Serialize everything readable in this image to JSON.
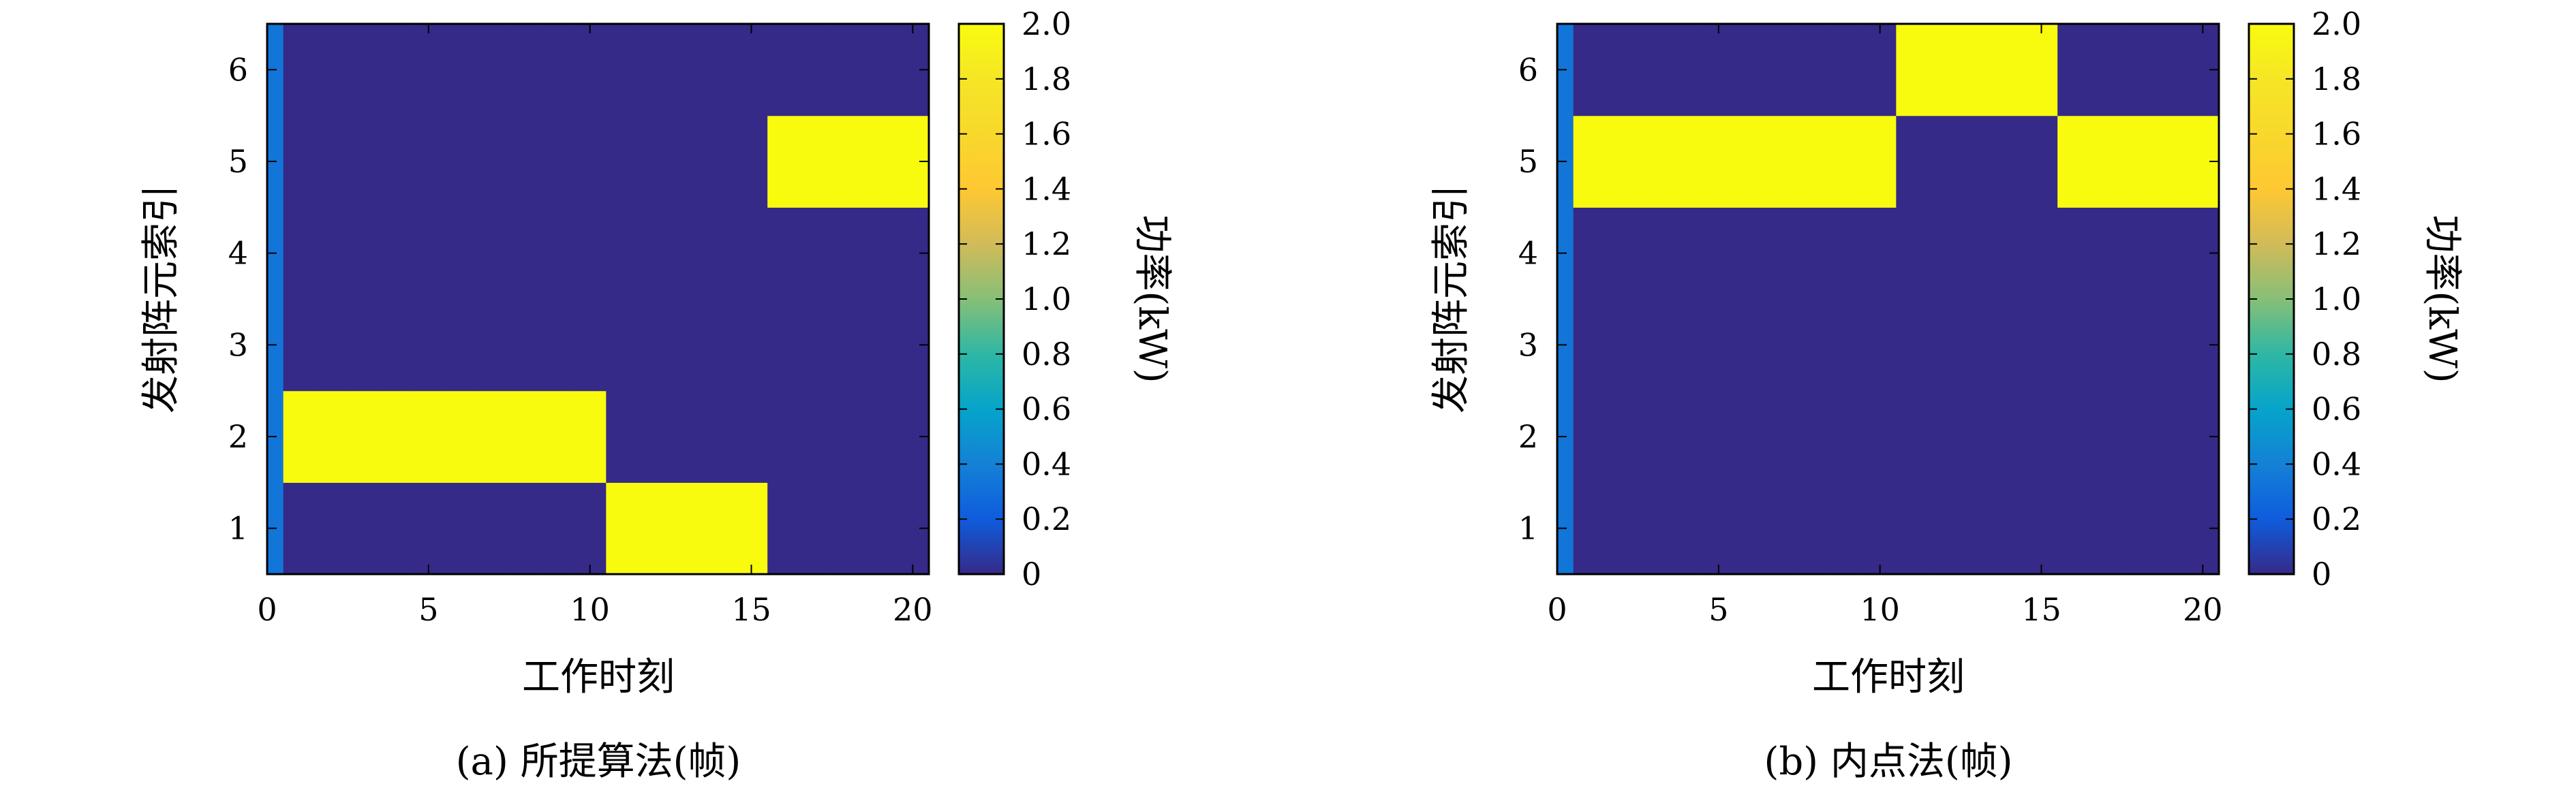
{
  "chart_data": [
    {
      "type": "heatmap",
      "caption": "(a) 所提算法(帧)",
      "xlabel": "工作时刻",
      "ylabel": "发射阵元索引",
      "colorbar_label": "功率(kW)",
      "colormap": "parula",
      "x_ticks": [
        "0",
        "5",
        "10",
        "15",
        "20"
      ],
      "y_ticks": [
        "1",
        "2",
        "3",
        "4",
        "5",
        "6"
      ],
      "colorbar_ticks": [
        "0",
        "0.2",
        "0.4",
        "0.6",
        "0.8",
        "1.0",
        "1.2",
        "1.4",
        "1.6",
        "1.8",
        "2.0"
      ],
      "xlim": [
        0,
        20.5
      ],
      "ylim": [
        0.5,
        6.5
      ],
      "clim": [
        0,
        2.0
      ],
      "columns": [
        0,
        1,
        2,
        3,
        4,
        5,
        6,
        7,
        8,
        9,
        10,
        11,
        12,
        13,
        14,
        15,
        16,
        17,
        18,
        19,
        20
      ],
      "rows": [
        1,
        2,
        3,
        4,
        5,
        6
      ],
      "values": [
        [
          0.333,
          0,
          0,
          0,
          0,
          0,
          0,
          0,
          0,
          0,
          0,
          2,
          2,
          2,
          2,
          2,
          0,
          0,
          0,
          0,
          0
        ],
        [
          0.333,
          2,
          2,
          2,
          2,
          2,
          2,
          2,
          2,
          2,
          2,
          0,
          0,
          0,
          0,
          0,
          0,
          0,
          0,
          0,
          0
        ],
        [
          0.333,
          0,
          0,
          0,
          0,
          0,
          0,
          0,
          0,
          0,
          0,
          0,
          0,
          0,
          0,
          0,
          0,
          0,
          0,
          0,
          0
        ],
        [
          0.333,
          0,
          0,
          0,
          0,
          0,
          0,
          0,
          0,
          0,
          0,
          0,
          0,
          0,
          0,
          0,
          0,
          0,
          0,
          0,
          0
        ],
        [
          0.333,
          0,
          0,
          0,
          0,
          0,
          0,
          0,
          0,
          0,
          0,
          0,
          0,
          0,
          0,
          0,
          2,
          2,
          2,
          2,
          2
        ],
        [
          0.333,
          0,
          0,
          0,
          0,
          0,
          0,
          0,
          0,
          0,
          0,
          0,
          0,
          0,
          0,
          0,
          0,
          0,
          0,
          0,
          0
        ]
      ]
    },
    {
      "type": "heatmap",
      "caption": "(b) 内点法(帧)",
      "xlabel": "工作时刻",
      "ylabel": "发射阵元索引",
      "colorbar_label": "功率(kW)",
      "colormap": "parula",
      "x_ticks": [
        "0",
        "5",
        "10",
        "15",
        "20"
      ],
      "y_ticks": [
        "1",
        "2",
        "3",
        "4",
        "5",
        "6"
      ],
      "colorbar_ticks": [
        "0",
        "0.2",
        "0.4",
        "0.6",
        "0.8",
        "1.0",
        "1.2",
        "1.4",
        "1.6",
        "1.8",
        "2.0"
      ],
      "xlim": [
        0,
        20.5
      ],
      "ylim": [
        0.5,
        6.5
      ],
      "clim": [
        0,
        2.0
      ],
      "columns": [
        0,
        1,
        2,
        3,
        4,
        5,
        6,
        7,
        8,
        9,
        10,
        11,
        12,
        13,
        14,
        15,
        16,
        17,
        18,
        19,
        20
      ],
      "rows": [
        1,
        2,
        3,
        4,
        5,
        6
      ],
      "values": [
        [
          0.333,
          0,
          0,
          0,
          0,
          0,
          0,
          0,
          0,
          0,
          0,
          0,
          0,
          0,
          0,
          0,
          0,
          0,
          0,
          0,
          0
        ],
        [
          0.333,
          0,
          0,
          0,
          0,
          0,
          0,
          0,
          0,
          0,
          0,
          0,
          0,
          0,
          0,
          0,
          0,
          0,
          0,
          0,
          0
        ],
        [
          0.333,
          0,
          0,
          0,
          0,
          0,
          0,
          0,
          0,
          0,
          0,
          0,
          0,
          0,
          0,
          0,
          0,
          0,
          0,
          0,
          0
        ],
        [
          0.333,
          0,
          0,
          0,
          0,
          0,
          0,
          0,
          0,
          0,
          0,
          0,
          0,
          0,
          0,
          0,
          0,
          0,
          0,
          0,
          0
        ],
        [
          0.333,
          2,
          2,
          2,
          2,
          2,
          2,
          2,
          2,
          2,
          2,
          0,
          0,
          0,
          0,
          0,
          2,
          2,
          2,
          2,
          2
        ],
        [
          0.333,
          0,
          0,
          0,
          0,
          0,
          0,
          0,
          0,
          0,
          0,
          2,
          2,
          2,
          2,
          2,
          0,
          0,
          0,
          0,
          0
        ]
      ]
    }
  ]
}
